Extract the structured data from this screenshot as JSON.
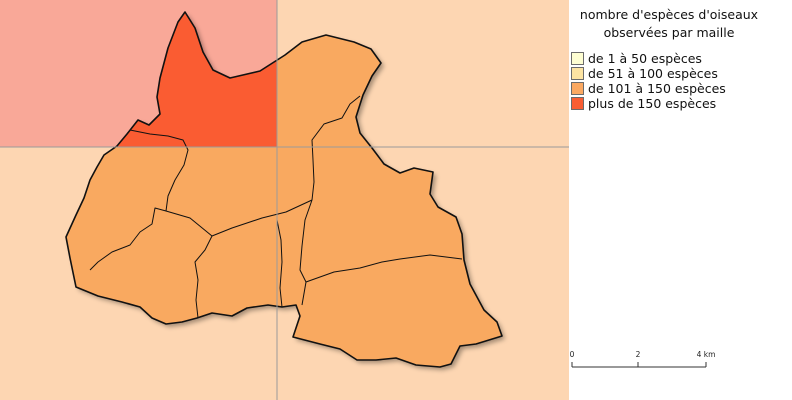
{
  "legend": {
    "title_line1": "nombre d'espèces d'oiseaux",
    "title_line2": "observées par maille",
    "items": [
      {
        "label": "de 1 à 50 espèces",
        "color": "#fefed2"
      },
      {
        "label": "de 51 à 100 espèces",
        "color": "#fde4a2"
      },
      {
        "label": "de 101 à 150 espèces",
        "color": "#fba962"
      },
      {
        "label": "plus de 150 espèces",
        "color": "#f95d33"
      }
    ]
  },
  "scale_bar": {
    "labels": [
      "0",
      "2",
      "4 km"
    ]
  },
  "grid": {
    "cells": [
      {
        "id": "nw",
        "class_index": 3,
        "background": "#f9a898"
      },
      {
        "id": "ne",
        "class_index": 2,
        "background": "#fdd6b2"
      },
      {
        "id": "sw",
        "class_index": 2,
        "background": "#fdd6b2"
      },
      {
        "id": "se",
        "class_index": 2,
        "background": "#fdd6b2"
      }
    ]
  },
  "colors": {
    "commune_fill": "#f9a960",
    "highlight_fill": "#fa5c32",
    "outline": "#111111",
    "grid_line": "#9a9a9a"
  }
}
